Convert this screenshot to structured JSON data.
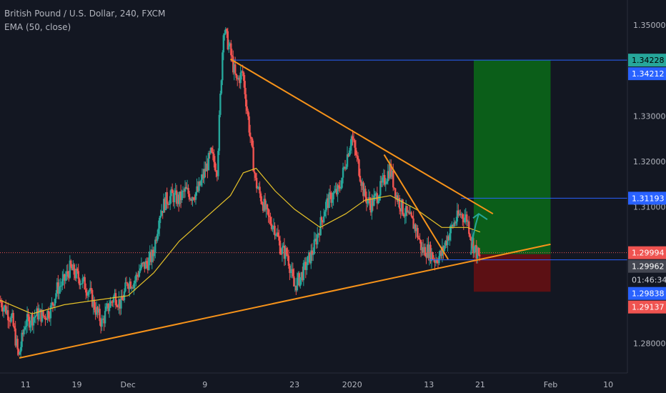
{
  "legend": {
    "symbol_line": "British Pound / U.S. Dollar, 240, FXCM",
    "indicator_line": "EMA (50, close)"
  },
  "colors": {
    "background": "#131722",
    "up_candle": "#26a69a",
    "down_candle": "#ef5350",
    "ema": "#e6c229",
    "trendline": "#f7931a",
    "horizontal_line": "#2962ff",
    "current_price_line": "#ef5350",
    "target_zone": "#0b6b18",
    "stop_zone": "#6a0f12",
    "green_label": "#26a69a",
    "arrow": "#26a69a",
    "axis_text": "#b2b5be"
  },
  "chart_data": {
    "type": "candlestick",
    "title": "British Pound / U.S. Dollar, 240, FXCM",
    "indicator": "EMA (50, close)",
    "y_range": [
      1.2735,
      1.3555
    ],
    "y_ticks": [
      {
        "value": 1.35,
        "label": "1.35000"
      },
      {
        "value": 1.34,
        "label": "1.34000"
      },
      {
        "value": 1.33,
        "label": "1.33000"
      },
      {
        "value": 1.32,
        "label": "1.32000"
      },
      {
        "value": 1.31,
        "label": "1.31000"
      },
      {
        "value": 1.28,
        "label": "1.28000"
      }
    ],
    "x_range": [
      "2019-11-07",
      "2020-02-13"
    ],
    "x_ticks": [
      {
        "date": "2019-11-11",
        "label": "11"
      },
      {
        "date": "2019-11-19",
        "label": "19"
      },
      {
        "date": "2019-11-27",
        "label": "Dec"
      },
      {
        "date": "2019-12-09",
        "label": "9"
      },
      {
        "date": "2019-12-23",
        "label": "23"
      },
      {
        "date": "2020-01-01",
        "label": "2020"
      },
      {
        "date": "2020-01-13",
        "label": "13"
      },
      {
        "date": "2020-01-21",
        "label": "21"
      },
      {
        "date": "2020-02-01",
        "label": "Feb"
      },
      {
        "date": "2020-02-10",
        "label": "10"
      }
    ],
    "price_path": [
      [
        "2019-11-07",
        1.2895
      ],
      [
        "2019-11-08",
        1.2875
      ],
      [
        "2019-11-09",
        1.285
      ],
      [
        "2019-11-10",
        1.277
      ],
      [
        "2019-11-11",
        1.2845
      ],
      [
        "2019-11-12",
        1.2855
      ],
      [
        "2019-11-13",
        1.2865
      ],
      [
        "2019-11-14",
        1.286
      ],
      [
        "2019-11-15",
        1.2875
      ],
      [
        "2019-11-16",
        1.292
      ],
      [
        "2019-11-17",
        1.2935
      ],
      [
        "2019-11-18",
        1.2965
      ],
      [
        "2019-11-19",
        1.295
      ],
      [
        "2019-11-20",
        1.2935
      ],
      [
        "2019-11-21",
        1.2915
      ],
      [
        "2019-11-22",
        1.2875
      ],
      [
        "2019-11-23",
        1.2845
      ],
      [
        "2019-11-24",
        1.288
      ],
      [
        "2019-11-25",
        1.2905
      ],
      [
        "2019-11-26",
        1.2885
      ],
      [
        "2019-11-27",
        1.2935
      ],
      [
        "2019-11-28",
        1.2935
      ],
      [
        "2019-11-29",
        1.2965
      ],
      [
        "2019-11-30",
        1.2975
      ],
      [
        "2019-12-01",
        1.2995
      ],
      [
        "2019-12-02",
        1.3085
      ],
      [
        "2019-12-03",
        1.3115
      ],
      [
        "2019-12-04",
        1.3125
      ],
      [
        "2019-12-05",
        1.3115
      ],
      [
        "2019-12-06",
        1.3135
      ],
      [
        "2019-12-07",
        1.3125
      ],
      [
        "2019-12-08",
        1.3135
      ],
      [
        "2019-12-09",
        1.3175
      ],
      [
        "2019-12-10",
        1.3215
      ],
      [
        "2019-12-11",
        1.3185
      ],
      [
        "2019-12-12",
        1.3495
      ],
      [
        "2019-12-13",
        1.3445
      ],
      [
        "2019-12-14",
        1.3375
      ],
      [
        "2019-12-15",
        1.3395
      ],
      [
        "2019-12-16",
        1.3275
      ],
      [
        "2019-12-17",
        1.3155
      ],
      [
        "2019-12-18",
        1.3115
      ],
      [
        "2019-12-19",
        1.3075
      ],
      [
        "2019-12-20",
        1.3055
      ],
      [
        "2019-12-21",
        1.3005
      ],
      [
        "2019-12-22",
        1.2995
      ],
      [
        "2019-12-23",
        1.2925
      ],
      [
        "2019-12-24",
        1.2945
      ],
      [
        "2019-12-25",
        1.2975
      ],
      [
        "2019-12-26",
        1.3005
      ],
      [
        "2019-12-27",
        1.3055
      ],
      [
        "2019-12-28",
        1.3105
      ],
      [
        "2019-12-29",
        1.3125
      ],
      [
        "2019-12-30",
        1.3135
      ],
      [
        "2019-12-31",
        1.3195
      ],
      [
        "2020-01-01",
        1.3255
      ],
      [
        "2020-01-02",
        1.3195
      ],
      [
        "2020-01-03",
        1.3125
      ],
      [
        "2020-01-04",
        1.3105
      ],
      [
        "2020-01-05",
        1.3125
      ],
      [
        "2020-01-06",
        1.3155
      ],
      [
        "2020-01-07",
        1.3185
      ],
      [
        "2020-01-08",
        1.3125
      ],
      [
        "2020-01-09",
        1.3095
      ],
      [
        "2020-01-10",
        1.3075
      ],
      [
        "2020-01-11",
        1.3055
      ],
      [
        "2020-01-12",
        1.3005
      ],
      [
        "2020-01-13",
        1.3005
      ],
      [
        "2020-01-14",
        1.2985
      ],
      [
        "2020-01-15",
        1.2995
      ],
      [
        "2020-01-16",
        1.3035
      ],
      [
        "2020-01-17",
        1.3065
      ],
      [
        "2020-01-18",
        1.3085
      ],
      [
        "2020-01-19",
        1.3075
      ],
      [
        "2020-01-20",
        1.3015
      ],
      [
        "2020-01-21",
        1.2985
      ]
    ],
    "ema_50": [
      [
        "2019-11-07",
        1.2895
      ],
      [
        "2019-11-12",
        1.2865
      ],
      [
        "2019-11-17",
        1.2885
      ],
      [
        "2019-11-22",
        1.2895
      ],
      [
        "2019-11-27",
        1.2905
      ],
      [
        "2019-12-01",
        1.2955
      ],
      [
        "2019-12-05",
        1.3025
      ],
      [
        "2019-12-09",
        1.3075
      ],
      [
        "2019-12-13",
        1.3125
      ],
      [
        "2019-12-15",
        1.3175
      ],
      [
        "2019-12-17",
        1.3185
      ],
      [
        "2019-12-20",
        1.3135
      ],
      [
        "2019-12-23",
        1.3095
      ],
      [
        "2019-12-27",
        1.3055
      ],
      [
        "2019-12-31",
        1.3085
      ],
      [
        "2020-01-03",
        1.3115
      ],
      [
        "2020-01-07",
        1.3125
      ],
      [
        "2020-01-11",
        1.3095
      ],
      [
        "2020-01-15",
        1.3055
      ],
      [
        "2020-01-19",
        1.3055
      ],
      [
        "2020-01-21",
        1.3045
      ]
    ],
    "trendlines": [
      {
        "name": "rising-support",
        "from": [
          "2019-11-10",
          1.2768
        ],
        "to": [
          "2020-02-01",
          1.3018
        ]
      },
      {
        "name": "falling-resistance",
        "from": [
          "2019-12-13",
          1.3425
        ],
        "to": [
          "2020-01-23",
          1.3085
        ]
      },
      {
        "name": "falling-channel",
        "from": [
          "2020-01-06",
          1.3215
        ],
        "to": [
          "2020-01-16",
          1.2985
        ]
      }
    ],
    "horizontal_lines": [
      {
        "value": 1.34228,
        "from": "2019-12-13"
      },
      {
        "value": 1.31193,
        "from": "2020-01-18"
      },
      {
        "value": 1.29838,
        "from": "2020-01-13"
      }
    ],
    "current_price": 1.29994,
    "position": {
      "type": "long",
      "from": "2020-01-20",
      "to": "2020-02-01",
      "entry": 1.29962,
      "target": 1.34228,
      "stop": 1.29137
    },
    "arrow": {
      "from": [
        "2020-01-20",
        1.2995
      ],
      "to": [
        "2020-01-21",
        1.3085
      ]
    },
    "price_labels": [
      {
        "value": 1.34228,
        "text": "1.34228",
        "style": "green"
      },
      {
        "value": 1.34212,
        "text": "1.34212",
        "style": "blue"
      },
      {
        "value": 1.31193,
        "text": "1.31193",
        "style": "blue"
      },
      {
        "value": 1.29994,
        "text": "1.29994",
        "style": "red"
      },
      {
        "value": 1.29928,
        "text": "01:46:34",
        "style": "dark"
      },
      {
        "value": 1.29962,
        "text": "1.29962",
        "style": "gray"
      },
      {
        "value": 1.29838,
        "text": "1.29838",
        "style": "blue"
      },
      {
        "value": 1.29137,
        "text": "1.29137",
        "style": "red"
      }
    ]
  }
}
